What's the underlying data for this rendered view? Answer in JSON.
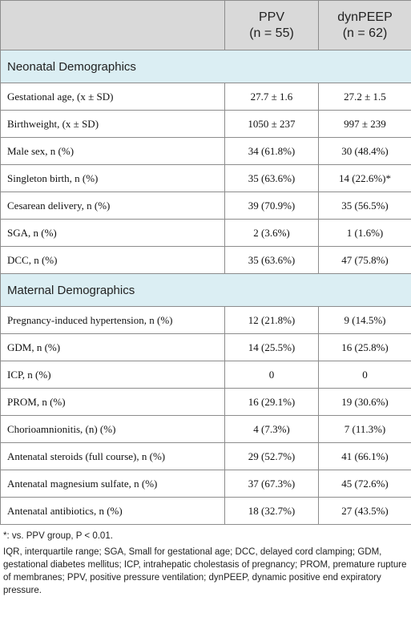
{
  "table": {
    "columns": [
      {
        "name": "PPV",
        "n": "(n = 55)"
      },
      {
        "name": "dynPEEP",
        "n": "(n = 62)"
      }
    ],
    "sections": [
      {
        "title": "Neonatal Demographics",
        "rows": [
          [
            "Gestational age, (x ± SD)",
            "27.7 ± 1.6",
            "27.2 ± 1.5"
          ],
          [
            "Birthweight, (x ± SD)",
            "1050 ± 237",
            "997 ± 239"
          ],
          [
            "Male sex, n (%)",
            "34 (61.8%)",
            "30 (48.4%)"
          ],
          [
            "Singleton birth, n (%)",
            "35 (63.6%)",
            "14 (22.6%)*"
          ],
          [
            "Cesarean delivery, n (%)",
            "39 (70.9%)",
            "35 (56.5%)"
          ],
          [
            "SGA, n (%)",
            "2 (3.6%)",
            "1 (1.6%)"
          ],
          [
            "DCC, n (%)",
            "35 (63.6%)",
            "47 (75.8%)"
          ]
        ]
      },
      {
        "title": "Maternal Demographics",
        "rows": [
          [
            "Pregnancy-induced hypertension, n (%)",
            "12 (21.8%)",
            "9 (14.5%)"
          ],
          [
            "GDM, n (%)",
            "14 (25.5%)",
            "16 (25.8%)"
          ],
          [
            "ICP, n (%)",
            "0",
            "0"
          ],
          [
            "PROM, n (%)",
            "16 (29.1%)",
            "19 (30.6%)"
          ],
          [
            "Chorioamnionitis, (n) (%)",
            "4 (7.3%)",
            "7 (11.3%)"
          ],
          [
            "Antenatal steroids (full course), n (%)",
            "29 (52.7%)",
            "41 (66.1%)"
          ],
          [
            "Antenatal magnesium sulfate, n (%)",
            "37 (67.3%)",
            "45 (72.6%)"
          ],
          [
            "Antenatal antibiotics, n (%)",
            "18 (32.7%)",
            "27 (43.5%)"
          ]
        ]
      }
    ],
    "footnotes": [
      "*: vs. PPV group, P < 0.01.",
      "IQR, interquartile range; SGA, Small for gestational age; DCC, delayed cord clamping; GDM, gestational diabetes mellitus; ICP, intrahepatic cholestasis of pregnancy; PROM, premature rupture of membranes; PPV, positive pressure ventilation; dynPEEP, dynamic positive end expiratory pressure."
    ]
  }
}
